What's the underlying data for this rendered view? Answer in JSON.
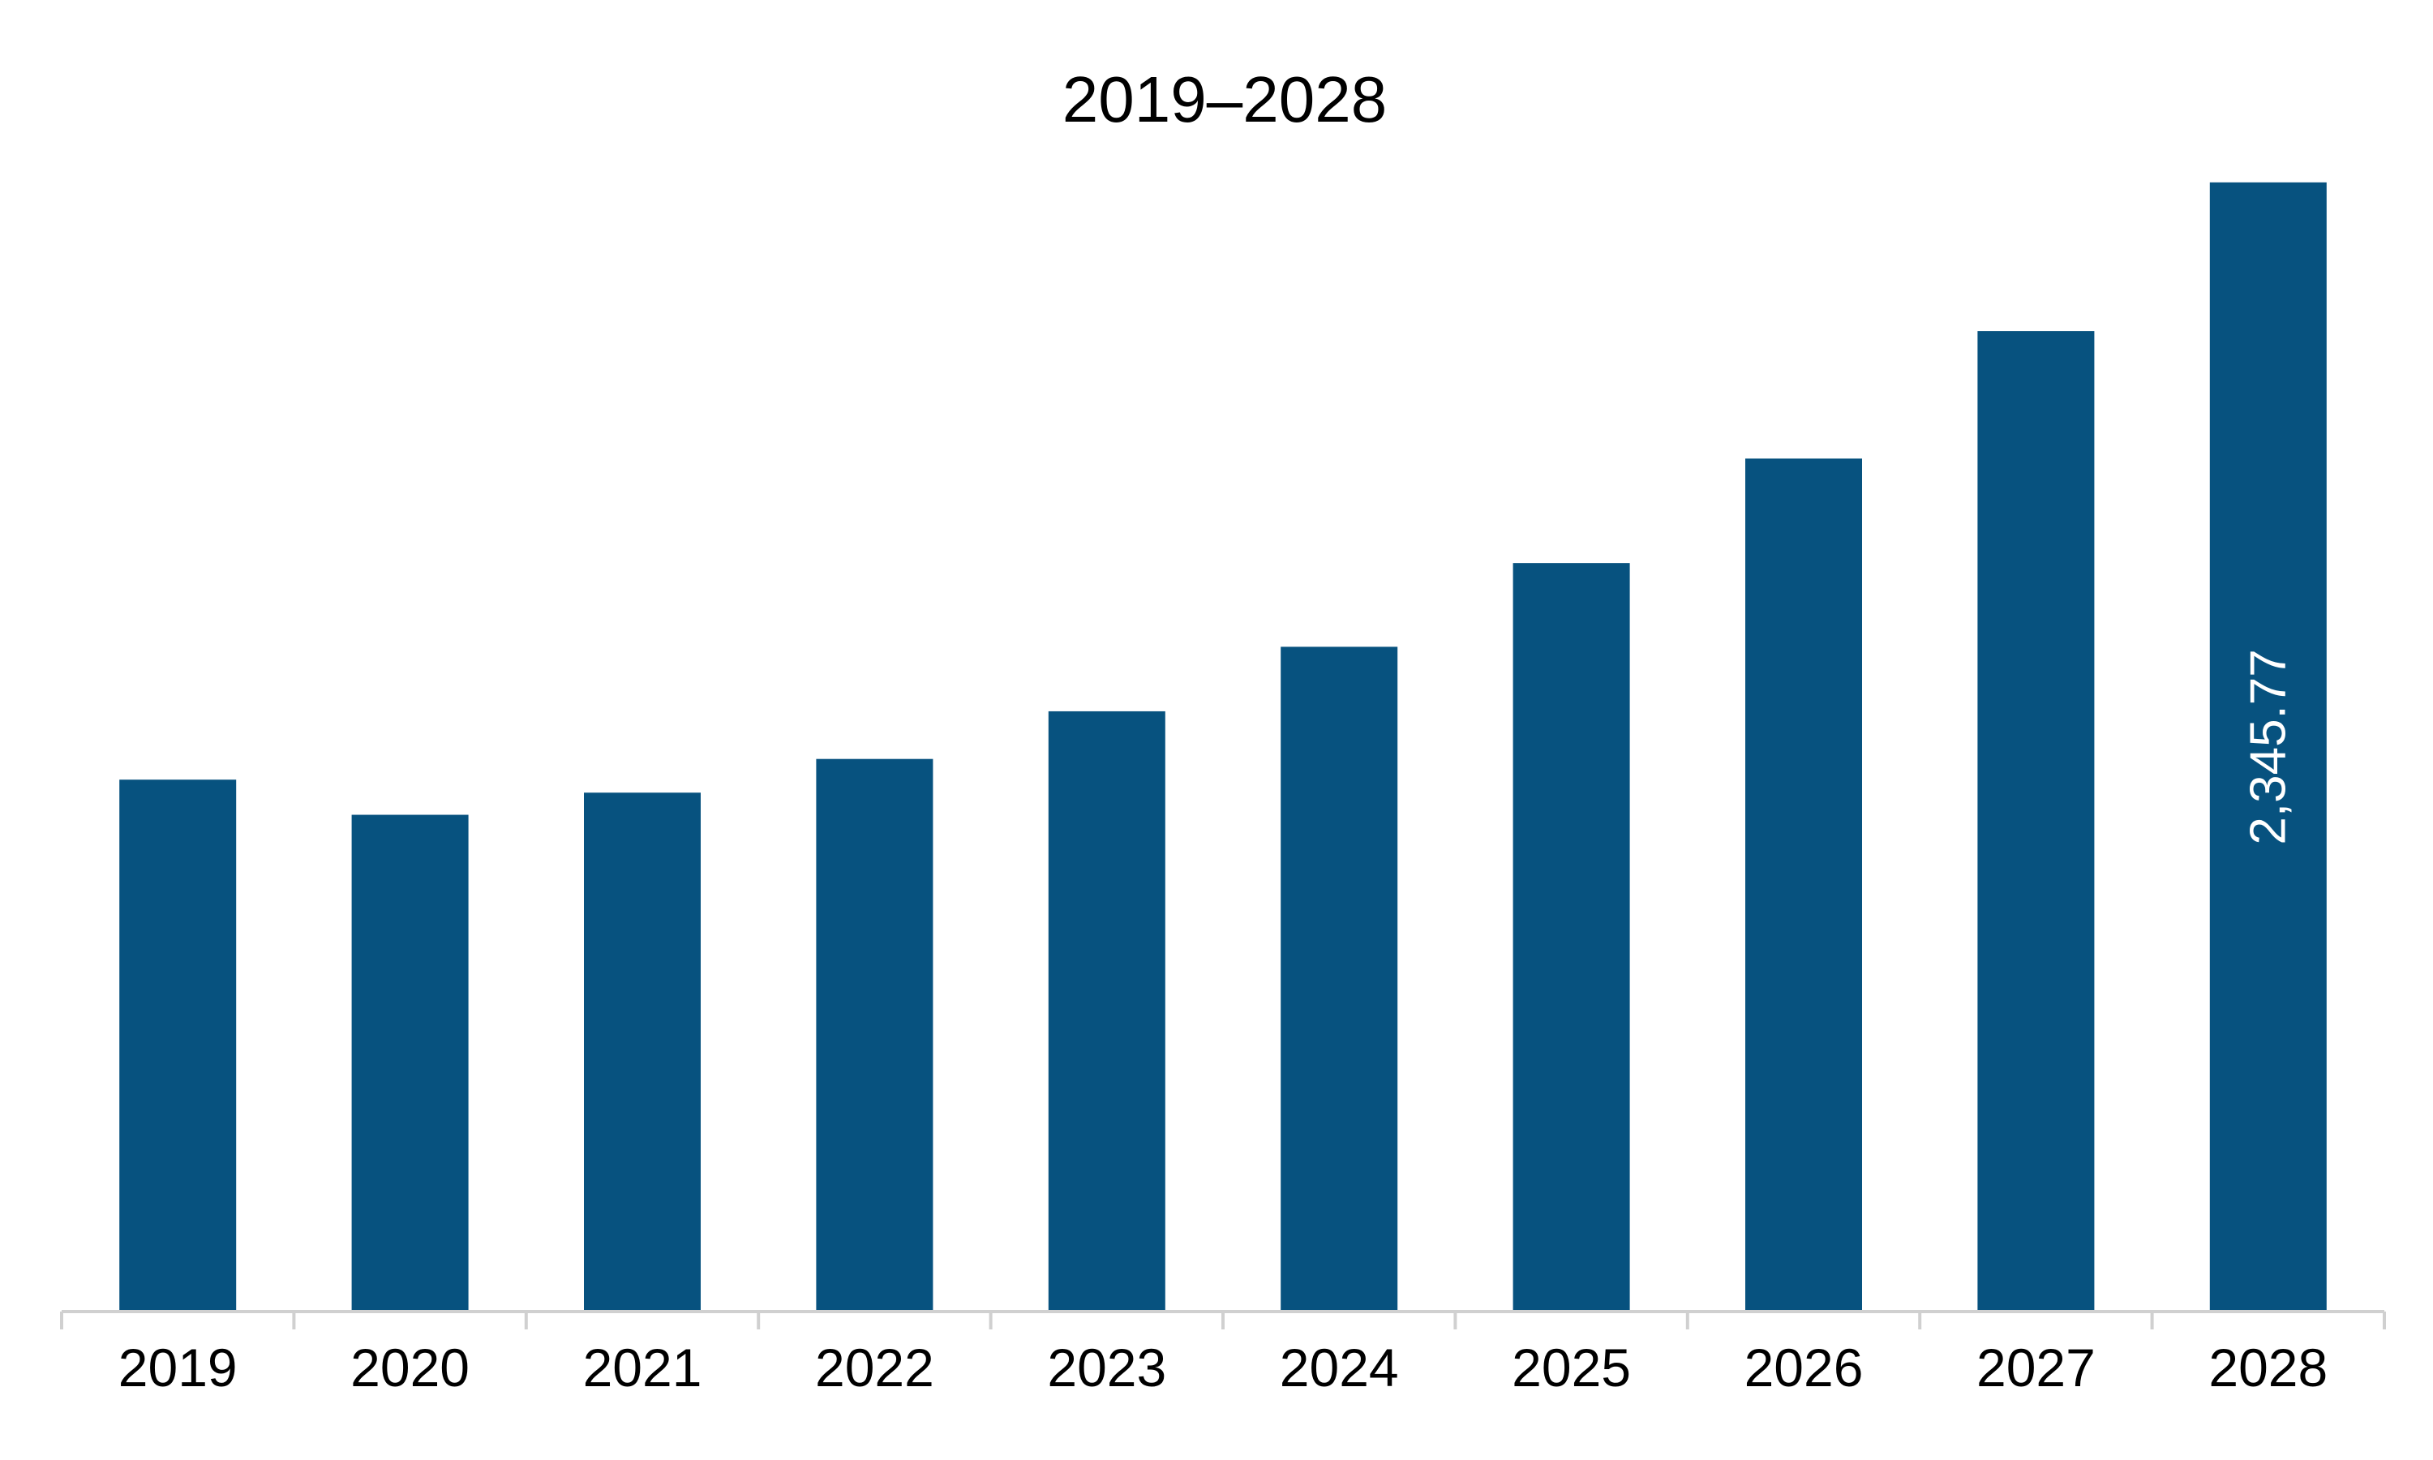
{
  "chart_data": {
    "type": "bar",
    "title": "2019–2028",
    "xlabel": "",
    "ylabel": "",
    "categories": [
      "2019",
      "2020",
      "2021",
      "2022",
      "2023",
      "2024",
      "2025",
      "2026",
      "2027",
      "2028"
    ],
    "values": [
      1105,
      1032,
      1078,
      1148,
      1247,
      1381,
      1555,
      1772,
      2037,
      2345.77
    ],
    "data_labels": [
      "",
      "",
      "",
      "",
      "",
      "",
      "",
      "",
      "",
      "2,345.77"
    ],
    "ylim": [
      0,
      2450
    ],
    "grid": false,
    "legend": "none",
    "bar_color": "#07527f"
  }
}
